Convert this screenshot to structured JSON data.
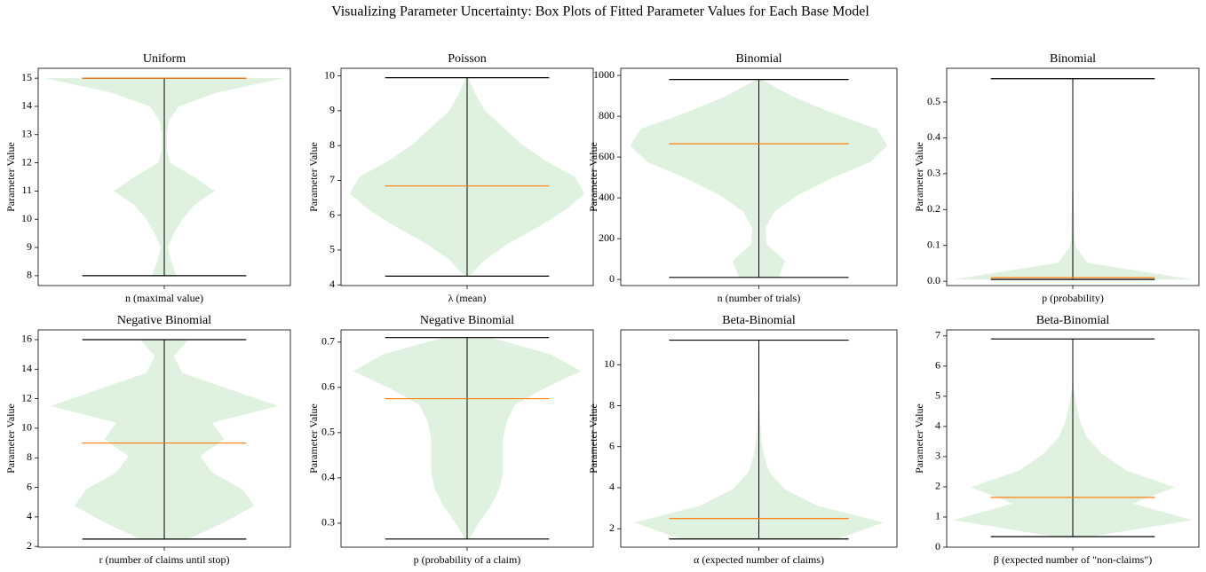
{
  "title": "Visualizing Parameter Uncertainty: Box Plots of Fitted Parameter Values for Each Base Model",
  "chart_data": [
    {
      "type": "violin",
      "title": "Uniform",
      "xlabel": "n (maximal value)",
      "ylabel": "Parameter Value",
      "ylim": [
        7.65,
        15.35
      ],
      "yticks": [
        8,
        9,
        10,
        11,
        12,
        13,
        14,
        15
      ],
      "min": 8,
      "max": 15,
      "median": 15,
      "density": [
        0.1,
        0.06,
        0.03,
        0.08,
        0.15,
        0.25,
        0.42,
        0.25,
        0.05,
        0.02,
        0.02,
        0.04,
        0.12,
        0.45,
        1.0
      ],
      "color": "#dcefdc",
      "median_color": "#ff7f0e"
    },
    {
      "type": "violin",
      "title": "Poisson",
      "xlabel": "λ (mean)",
      "ylabel": "Parameter Value",
      "ylim": [
        3.98,
        10.22
      ],
      "yticks": [
        4,
        5,
        6,
        7,
        8,
        9,
        10
      ],
      "min": 4.25,
      "max": 9.95,
      "median": 6.84,
      "density": [
        0.02,
        0.15,
        0.35,
        0.6,
        0.82,
        0.98,
        0.9,
        0.65,
        0.45,
        0.3,
        0.15,
        0.07,
        0.01
      ],
      "color": "#dcefdc",
      "median_color": "#ff7f0e"
    },
    {
      "type": "violin",
      "title": "Binomial",
      "xlabel": "n (number of trials)",
      "ylabel": "Parameter Value",
      "ylim": [
        -30,
        1035
      ],
      "yticks": [
        0,
        200,
        400,
        600,
        800,
        1000
      ],
      "min": 10,
      "max": 980,
      "median": 665,
      "density": [
        0.15,
        0.2,
        0.06,
        0.05,
        0.12,
        0.3,
        0.55,
        0.85,
        0.98,
        0.9,
        0.55,
        0.25,
        0.02
      ],
      "color": "#dcefdc",
      "median_color": "#ff7f0e"
    },
    {
      "type": "violin",
      "title": "Binomial",
      "xlabel": "p (probability)",
      "ylabel": "Parameter Value",
      "ylim": [
        -0.012,
        0.594
      ],
      "yticks": [
        {
          "value": 0,
          "label": "0.0"
        },
        0.1,
        0.2,
        0.3,
        0.4,
        0.5
      ],
      "min": 0.005,
      "max": 0.565,
      "median": 0.01,
      "density": [
        1.0,
        0.12,
        0.02,
        0.01,
        0.01,
        0.005,
        0,
        0,
        0,
        0,
        0,
        0,
        0
      ],
      "color": "#dcefdc",
      "median_color": "#ff7f0e"
    },
    {
      "type": "violin",
      "title": "Negative Binomial",
      "xlabel": "r (number of claims until stop)",
      "ylabel": "Parameter Value",
      "ylim": [
        1.95,
        16.66
      ],
      "yticks": [
        2,
        4,
        6,
        8,
        10,
        12,
        14,
        16
      ],
      "min": 2.5,
      "max": 16,
      "median": 9,
      "density": [
        0.2,
        0.5,
        0.75,
        0.65,
        0.4,
        0.3,
        0.5,
        0.4,
        0.95,
        0.55,
        0.15,
        0.08,
        0.2
      ],
      "color": "#dcefdc",
      "median_color": "#ff7f0e"
    },
    {
      "type": "violin",
      "title": "Negative Binomial",
      "xlabel": "p (probability of a claim)",
      "ylabel": "Parameter Value",
      "ylim": [
        0.247,
        0.727
      ],
      "yticks": [
        0.3,
        0.4,
        0.5,
        0.6,
        0.7
      ],
      "min": 0.265,
      "max": 0.71,
      "median": 0.575,
      "density": [
        0.02,
        0.1,
        0.2,
        0.27,
        0.3,
        0.3,
        0.3,
        0.33,
        0.4,
        0.65,
        0.95,
        0.7,
        0.2
      ],
      "color": "#dcefdc",
      "median_color": "#ff7f0e"
    },
    {
      "type": "violin",
      "title": "Beta-Binomial",
      "xlabel": "α (expected number of claims)",
      "ylabel": "Parameter Value",
      "ylim": [
        1.1,
        11.7
      ],
      "yticks": [
        2,
        4,
        6,
        8,
        10
      ],
      "min": 1.5,
      "max": 11.2,
      "median": 2.5,
      "density": [
        0.6,
        0.95,
        0.45,
        0.2,
        0.08,
        0.04,
        0.02,
        0.01,
        0.005,
        0,
        0,
        0,
        0
      ],
      "color": "#dcefdc",
      "median_color": "#ff7f0e"
    },
    {
      "type": "violin",
      "title": "Beta-Binomial",
      "xlabel": "β (expected number of \"non-claims\")",
      "ylabel": "Parameter Value",
      "ylim": [
        0,
        7.2
      ],
      "yticks": [
        0,
        1,
        2,
        3,
        4,
        5,
        6,
        7
      ],
      "min": 0.35,
      "max": 6.9,
      "median": 1.65,
      "density": [
        0.15,
        1.0,
        0.5,
        0.85,
        0.45,
        0.25,
        0.12,
        0.06,
        0.03,
        0.005,
        0,
        0,
        0
      ],
      "color": "#dcefdc",
      "median_color": "#ff7f0e"
    }
  ]
}
